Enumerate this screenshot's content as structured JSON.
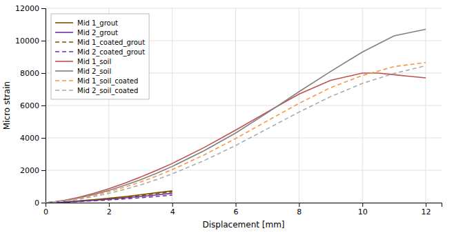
{
  "chart_data": {
    "type": "line",
    "xlabel": "Displacement [mm]",
    "ylabel": "Micro strain",
    "xlim": [
      0,
      12.5
    ],
    "ylim": [
      0,
      12000
    ],
    "xticks": [
      0,
      2,
      4,
      6,
      8,
      10,
      12
    ],
    "yticks": [
      0,
      2000,
      4000,
      6000,
      8000,
      10000,
      12000
    ],
    "grid": true,
    "legend": "upper left",
    "series": [
      {
        "name": "Mid 1_grout",
        "color": "#7B4F00",
        "line_style": "solid",
        "x": [
          0,
          0.3,
          0.6,
          1.0,
          1.5,
          2.0,
          2.5,
          3.0,
          3.5,
          4.0
        ],
        "values": [
          0,
          20,
          50,
          100,
          180,
          270,
          370,
          490,
          610,
          730
        ]
      },
      {
        "name": "Mid 2_grout",
        "color": "#7030A0",
        "line_style": "solid",
        "x": [
          0,
          0.3,
          0.6,
          1.0,
          1.5,
          2.0,
          2.5,
          3.0,
          3.5,
          4.0
        ],
        "values": [
          0,
          15,
          38,
          80,
          145,
          215,
          295,
          385,
          480,
          580
        ]
      },
      {
        "name": "Mid 1_coated_grout",
        "color": "#7B4F00",
        "line_style": "dashed",
        "x": [
          0,
          0.3,
          0.6,
          1.0,
          1.5,
          2.0,
          2.5,
          3.0,
          3.5,
          4.0
        ],
        "values": [
          0,
          18,
          44,
          90,
          165,
          248,
          340,
          445,
          555,
          665
        ]
      },
      {
        "name": "Mid 2_coated_grout",
        "color": "#7030A0",
        "line_style": "dashed",
        "x": [
          0,
          0.3,
          0.6,
          1.0,
          1.5,
          2.0,
          2.5,
          3.0,
          3.5,
          4.0
        ],
        "values": [
          0,
          12,
          30,
          62,
          112,
          168,
          232,
          305,
          385,
          468
        ]
      },
      {
        "name": "Mid 1_soil",
        "color": "#C0504D",
        "line_style": "solid",
        "x": [
          0,
          0.3,
          0.6,
          1.0,
          1.5,
          2.0,
          2.5,
          3.0,
          3.5,
          4.0,
          5.0,
          6.0,
          7.0,
          8.0,
          9.0,
          10.0,
          10.5,
          11.0,
          11.5,
          12.0
        ],
        "values": [
          0,
          60,
          150,
          310,
          560,
          860,
          1200,
          1580,
          1990,
          2420,
          3400,
          4480,
          5600,
          6700,
          7550,
          8000,
          8000,
          7900,
          7800,
          7700
        ]
      },
      {
        "name": "Mid 2_soil",
        "color": "#808080",
        "line_style": "solid",
        "x": [
          0,
          0.3,
          0.6,
          1.0,
          1.5,
          2.0,
          2.5,
          3.0,
          3.5,
          4.0,
          5.0,
          6.0,
          7.0,
          8.0,
          9.0,
          10.0,
          11.0,
          12.0
        ],
        "values": [
          0,
          50,
          130,
          270,
          490,
          760,
          1070,
          1420,
          1810,
          2240,
          3200,
          4300,
          5550,
          6850,
          8100,
          9300,
          10300,
          10700
        ]
      },
      {
        "name": "Mid 1_soil_coated",
        "color": "#F79646",
        "line_style": "dashed",
        "x": [
          0,
          0.3,
          0.6,
          1.0,
          1.5,
          2.0,
          2.5,
          3.0,
          3.5,
          4.0,
          5.0,
          6.0,
          7.0,
          8.0,
          9.0,
          10.0,
          11.0,
          12.0
        ],
        "values": [
          0,
          45,
          115,
          240,
          440,
          680,
          960,
          1280,
          1640,
          2040,
          2940,
          3960,
          5050,
          6130,
          7100,
          7850,
          8400,
          8650
        ]
      },
      {
        "name": "Mid 2_soil_coated",
        "color": "#ABABAB",
        "line_style": "dashed",
        "x": [
          0,
          0.3,
          0.6,
          1.0,
          1.5,
          2.0,
          2.5,
          3.0,
          3.5,
          4.0,
          5.0,
          6.0,
          7.0,
          8.0,
          9.0,
          10.0,
          11.0,
          12.0
        ],
        "values": [
          0,
          38,
          96,
          200,
          370,
          575,
          820,
          1100,
          1420,
          1780,
          2590,
          3530,
          4560,
          5590,
          6550,
          7360,
          7980,
          8450
        ]
      }
    ]
  }
}
